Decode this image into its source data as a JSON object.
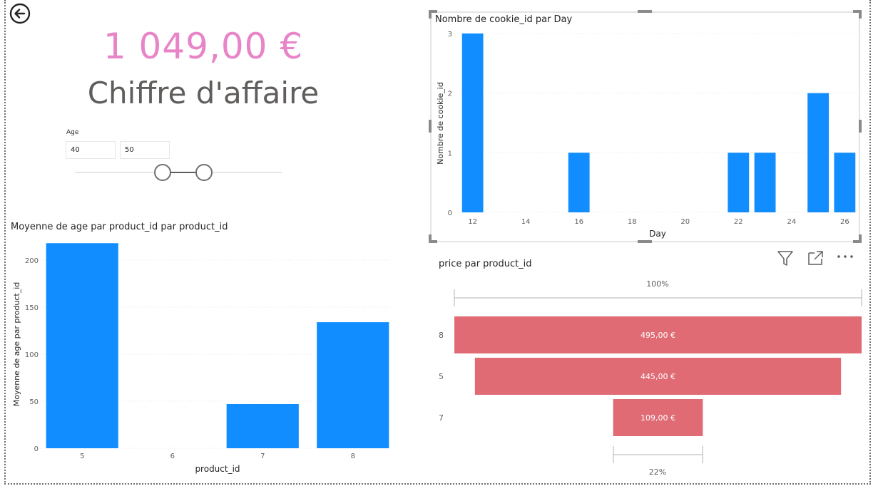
{
  "kpi": {
    "value": "1 049,00 €",
    "label": "Chiffre d'affaire"
  },
  "slicer": {
    "title": "Age",
    "min_value": "40",
    "max_value": "50"
  },
  "icons": {
    "back": "back-arrow-icon",
    "filter": "filter-icon",
    "focus": "focus-mode-icon",
    "more": "more-options-icon"
  },
  "colors": {
    "kpi": "#e884c8",
    "bar": "#118dff",
    "funnel": "#e06b74"
  },
  "chart_data": [
    {
      "type": "bar",
      "title": "Nombre de cookie_id par Day",
      "xlabel": "Day",
      "ylabel": "Nombre de cookie_id",
      "x": [
        12,
        16,
        22,
        23,
        25,
        26
      ],
      "values": [
        3,
        1,
        1,
        1,
        2,
        1
      ],
      "xlim": [
        11.5,
        26.5
      ],
      "xticks": [
        12,
        14,
        16,
        18,
        20,
        22,
        24,
        26
      ],
      "ylim": [
        0,
        3
      ],
      "yticks": [
        0,
        1,
        2,
        3
      ],
      "grid": true
    },
    {
      "type": "bar",
      "title": "Moyenne de age par product_id par product_id",
      "xlabel": "product_id",
      "ylabel": "Moyenne de age par product_id",
      "categories": [
        "5",
        "6",
        "7",
        "8"
      ],
      "values": [
        218,
        0,
        47,
        134
      ],
      "ylim": [
        0,
        225
      ],
      "yticks": [
        0,
        50,
        100,
        150,
        200
      ],
      "grid": true
    },
    {
      "type": "funnel",
      "title": "price par product_id",
      "categories": [
        "8",
        "5",
        "7"
      ],
      "values": [
        495,
        445,
        109
      ],
      "labels": [
        "495,00 €",
        "445,00 €",
        "109,00 €"
      ],
      "top_percent": "100%",
      "bottom_percent": "22%"
    }
  ]
}
